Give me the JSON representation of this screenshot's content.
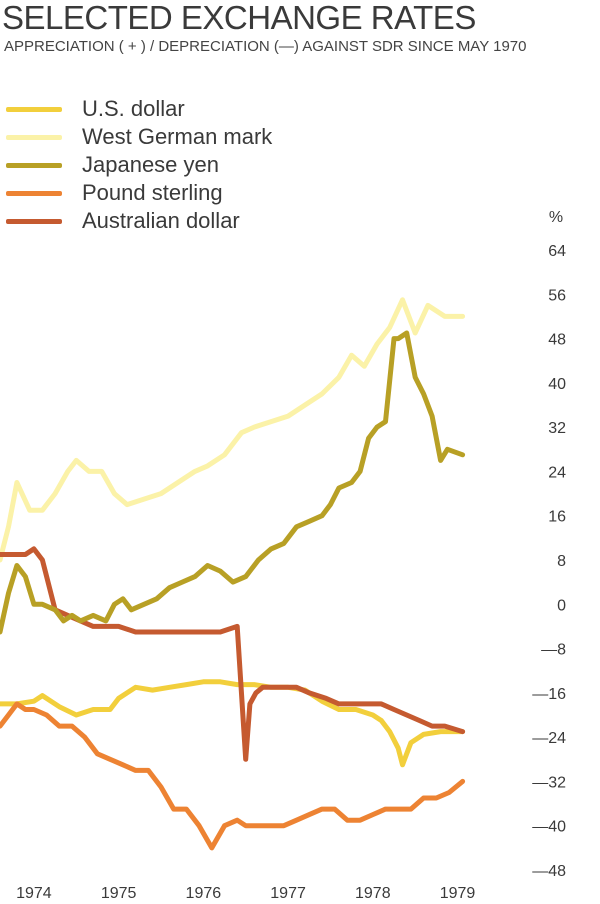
{
  "header": {
    "title": "SELECTED EXCHANGE RATES",
    "subtitle": "APPRECIATION ( + ) / DEPRECIATION (—) AGAINST SDR SINCE MAY 1970"
  },
  "chart_data": {
    "type": "line",
    "title": "SELECTED EXCHANGE RATES",
    "subtitle": "APPRECIATION ( + ) / DEPRECIATION (—) AGAINST SDR SINCE MAY 1970",
    "ylabel": "%",
    "ylim": [
      -48,
      64
    ],
    "xlim": [
      1973.6,
      1979.1
    ],
    "y_ticks": [
      64,
      56,
      48,
      40,
      32,
      24,
      16,
      8,
      0,
      -8,
      -16,
      -24,
      -32,
      -40,
      -48
    ],
    "y_tick_labels": [
      "64",
      "56",
      "48",
      "40",
      "32",
      "24",
      "16",
      "8",
      "0",
      "—8",
      "—16",
      "—24",
      "—32",
      "—40",
      "—48"
    ],
    "x_ticks": [
      1974,
      1975,
      1976,
      1977,
      1978,
      1979
    ],
    "x_tick_labels": [
      "1974",
      "1975",
      "1976",
      "1977",
      "1978",
      "1979"
    ],
    "grid": false,
    "legend_position": "top-left",
    "series": [
      {
        "name": "U.S. dollar",
        "color": "#f2cf3c",
        "x": [
          1973.6,
          1973.8,
          1974.0,
          1974.1,
          1974.3,
          1974.5,
          1974.7,
          1974.9,
          1975.0,
          1975.2,
          1975.4,
          1975.6,
          1975.8,
          1976.0,
          1976.2,
          1976.4,
          1976.6,
          1976.8,
          1977.0,
          1977.2,
          1977.4,
          1977.6,
          1977.8,
          1978.0,
          1978.1,
          1978.2,
          1978.3,
          1978.35,
          1978.45,
          1978.6,
          1978.8,
          1979.0,
          1979.06
        ],
        "y": [
          -18,
          -18,
          -17.5,
          -16.5,
          -18.5,
          -20,
          -19,
          -19,
          -17,
          -15,
          -15.5,
          -15,
          -14.5,
          -14,
          -14,
          -14.5,
          -14.5,
          -15,
          -15,
          -15.5,
          -17.5,
          -19,
          -19,
          -20,
          -21,
          -23,
          -26,
          -29,
          -25,
          -23.5,
          -23,
          -23,
          -23
        ]
      },
      {
        "name": "West German mark",
        "color": "#fbf2a8",
        "x": [
          1973.6,
          1973.7,
          1973.8,
          1973.95,
          1974.1,
          1974.25,
          1974.4,
          1974.5,
          1974.65,
          1974.8,
          1974.95,
          1975.1,
          1975.3,
          1975.5,
          1975.7,
          1975.9,
          1976.05,
          1976.25,
          1976.45,
          1976.6,
          1976.8,
          1977.0,
          1977.2,
          1977.4,
          1977.6,
          1977.75,
          1977.9,
          1978.05,
          1978.2,
          1978.35,
          1978.5,
          1978.65,
          1978.85,
          1979.06
        ],
        "y": [
          8,
          14,
          22,
          17,
          17,
          20,
          24,
          26,
          24,
          24,
          20,
          18,
          19,
          20,
          22,
          24,
          25,
          27,
          31,
          32,
          33,
          34,
          36,
          38,
          41,
          45,
          43,
          47,
          50,
          55,
          49,
          54,
          52,
          52
        ]
      },
      {
        "name": "Japanese yen",
        "color": "#b8a025",
        "x": [
          1973.6,
          1973.7,
          1973.8,
          1973.9,
          1974.0,
          1974.1,
          1974.25,
          1974.35,
          1974.45,
          1974.55,
          1974.7,
          1974.85,
          1974.95,
          1975.05,
          1975.15,
          1975.3,
          1975.45,
          1975.6,
          1975.75,
          1975.9,
          1976.05,
          1976.2,
          1976.35,
          1976.5,
          1976.65,
          1976.8,
          1976.95,
          1977.1,
          1977.25,
          1977.4,
          1977.5,
          1977.6,
          1977.75,
          1977.85,
          1977.95,
          1978.05,
          1978.15,
          1978.25,
          1978.3,
          1978.4,
          1978.5,
          1978.6,
          1978.7,
          1978.8,
          1978.88,
          1979.06
        ],
        "y": [
          -5,
          2,
          7,
          5,
          0,
          0,
          -1,
          -3,
          -2,
          -3,
          -2,
          -3,
          0,
          1,
          -1,
          0,
          1,
          3,
          4,
          5,
          7,
          6,
          4,
          5,
          8,
          10,
          11,
          14,
          15,
          16,
          18,
          21,
          22,
          24,
          30,
          32,
          33,
          48,
          48,
          49,
          41,
          38,
          34,
          26,
          28,
          27
        ]
      },
      {
        "name": "Pound sterling",
        "color": "#ed8333",
        "x": [
          1973.6,
          1973.7,
          1973.8,
          1973.9,
          1974.0,
          1974.15,
          1974.3,
          1974.45,
          1974.6,
          1974.75,
          1974.9,
          1975.05,
          1975.2,
          1975.35,
          1975.5,
          1975.65,
          1975.8,
          1975.95,
          1976.1,
          1976.25,
          1976.4,
          1976.5,
          1976.65,
          1976.8,
          1976.95,
          1977.1,
          1977.25,
          1977.4,
          1977.55,
          1977.7,
          1977.85,
          1978.0,
          1978.15,
          1978.3,
          1978.45,
          1978.6,
          1978.75,
          1978.9,
          1979.06
        ],
        "y": [
          -22,
          -20,
          -18,
          -19,
          -19,
          -20,
          -22,
          -22,
          -24,
          -27,
          -28,
          -29,
          -30,
          -30,
          -33,
          -37,
          -37,
          -40,
          -44,
          -40,
          -39,
          -40,
          -40,
          -40,
          -40,
          -39,
          -38,
          -37,
          -37,
          -39,
          -39,
          -38,
          -37,
          -37,
          -37,
          -35,
          -35,
          -34,
          -32
        ]
      },
      {
        "name": "Australian dollar",
        "color": "#c55a30",
        "x": [
          1973.6,
          1973.75,
          1973.9,
          1974.0,
          1974.1,
          1974.25,
          1974.4,
          1974.55,
          1974.7,
          1974.85,
          1975.0,
          1975.2,
          1975.4,
          1975.6,
          1975.8,
          1976.0,
          1976.2,
          1976.4,
          1976.5,
          1976.55,
          1976.62,
          1976.7,
          1976.8,
          1976.95,
          1977.1,
          1977.25,
          1977.45,
          1977.6,
          1977.8,
          1978.0,
          1978.1,
          1978.25,
          1978.4,
          1978.55,
          1978.7,
          1978.85,
          1979.06
        ],
        "y": [
          9,
          9,
          9,
          10,
          8,
          -1,
          -2,
          -3,
          -4,
          -4,
          -4,
          -5,
          -5,
          -5,
          -5,
          -5,
          -5,
          -4,
          -28,
          -18,
          -16,
          -15,
          -15,
          -15,
          -15,
          -16,
          -17,
          -18,
          -18,
          -18,
          -18,
          -19,
          -20,
          -21,
          -22,
          -22,
          -23
        ]
      }
    ]
  }
}
